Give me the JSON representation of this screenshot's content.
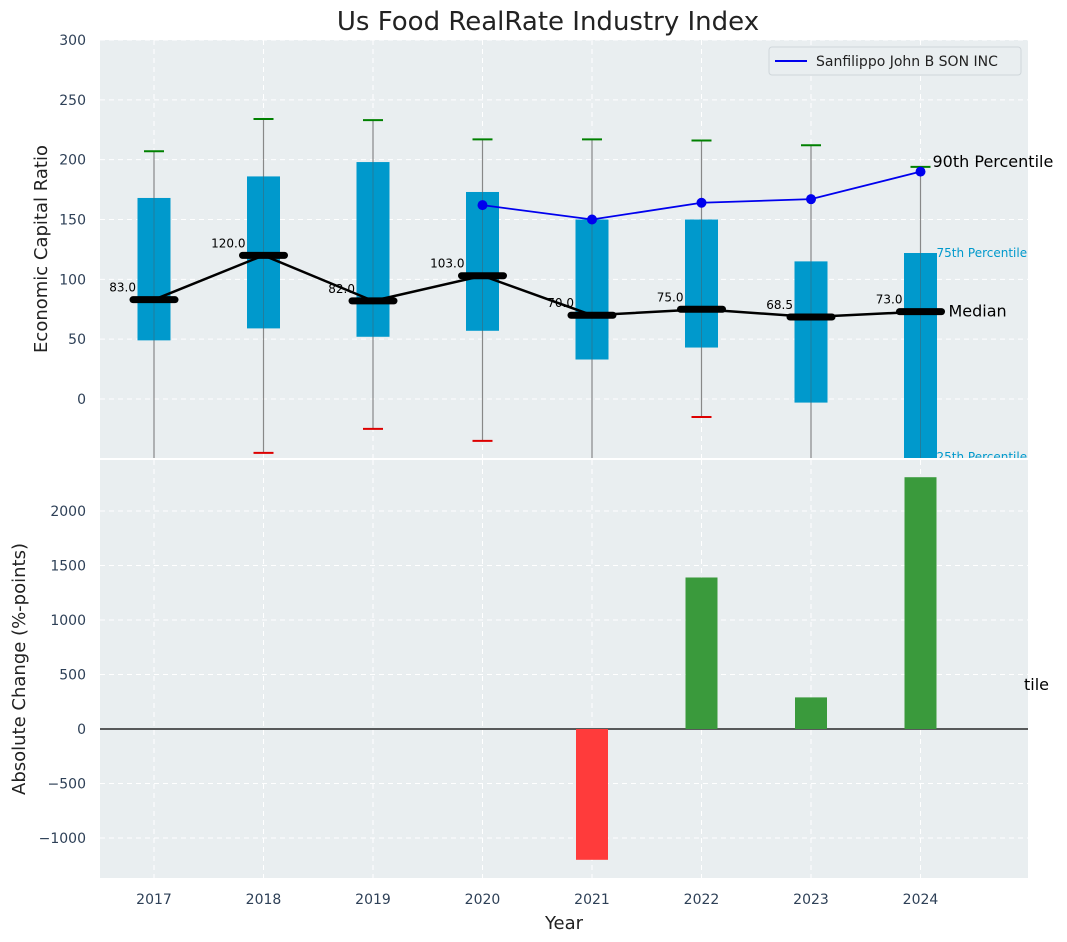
{
  "chart_data": [
    {
      "type": "box",
      "title": "Us Food RealRate Industry Index",
      "ylabel": "Economic Capital Ratio",
      "xlabel": "",
      "ylim": [
        -50,
        300
      ],
      "yticks": [
        0,
        50,
        100,
        150,
        200,
        250,
        300
      ],
      "grid": true,
      "legend_position": "top-right",
      "categories": [
        "2017",
        "2018",
        "2019",
        "2020",
        "2021",
        "2022",
        "2023",
        "2024"
      ],
      "p10": [
        -60,
        -45,
        -25,
        -35,
        -60,
        -15,
        -60,
        -60
      ],
      "p25": [
        49,
        59,
        52,
        57,
        33,
        43,
        -3,
        -60
      ],
      "median": [
        83.0,
        120.0,
        82.0,
        103.0,
        70.0,
        75.0,
        68.5,
        73.0
      ],
      "median_labels": [
        "83.0",
        "120.0",
        "82.0",
        "103.0",
        "70.0",
        "75.0",
        "68.5",
        "73.0"
      ],
      "p75": [
        168,
        186,
        198,
        173,
        150,
        150,
        115,
        122
      ],
      "p90": [
        207,
        234,
        233,
        217,
        217,
        216,
        212,
        194
      ],
      "series": [
        {
          "name": "Sanfilippo John B SON INC",
          "color": "#0000ee",
          "x": [
            "2020",
            "2021",
            "2022",
            "2023",
            "2024"
          ],
          "values": [
            162,
            150,
            164,
            167,
            190
          ]
        }
      ],
      "annotations": {
        "p90": "90th Percentile",
        "p75": "75th Percentile",
        "median": "Median",
        "p25": "25th Percentile"
      },
      "colors": {
        "box": "#0099cc",
        "median_line": "#000000",
        "whisker_high_cap": "#008000",
        "whisker_low_cap": "#dd0000",
        "background": "#e9eef0"
      }
    },
    {
      "type": "bar",
      "title": "",
      "ylabel": "Absolute Change (%-points)",
      "xlabel": "Year",
      "ylim": [
        -1370,
        2450
      ],
      "yticks": [
        -1000,
        -500,
        0,
        500,
        1000,
        1500,
        2000
      ],
      "ytick_labels": [
        "−1000",
        "−500",
        "0",
        "500",
        "1000",
        "1500",
        "2000"
      ],
      "grid": true,
      "categories": [
        "2017",
        "2018",
        "2019",
        "2020",
        "2021",
        "2022",
        "2023",
        "2024"
      ],
      "values": [
        null,
        null,
        null,
        null,
        -1200,
        1390,
        290,
        2310
      ],
      "colors": {
        "positive": "#3a9a3c",
        "negative": "#ff3b3b",
        "background": "#e9eef0"
      },
      "clipped_annotation": "tile"
    }
  ]
}
